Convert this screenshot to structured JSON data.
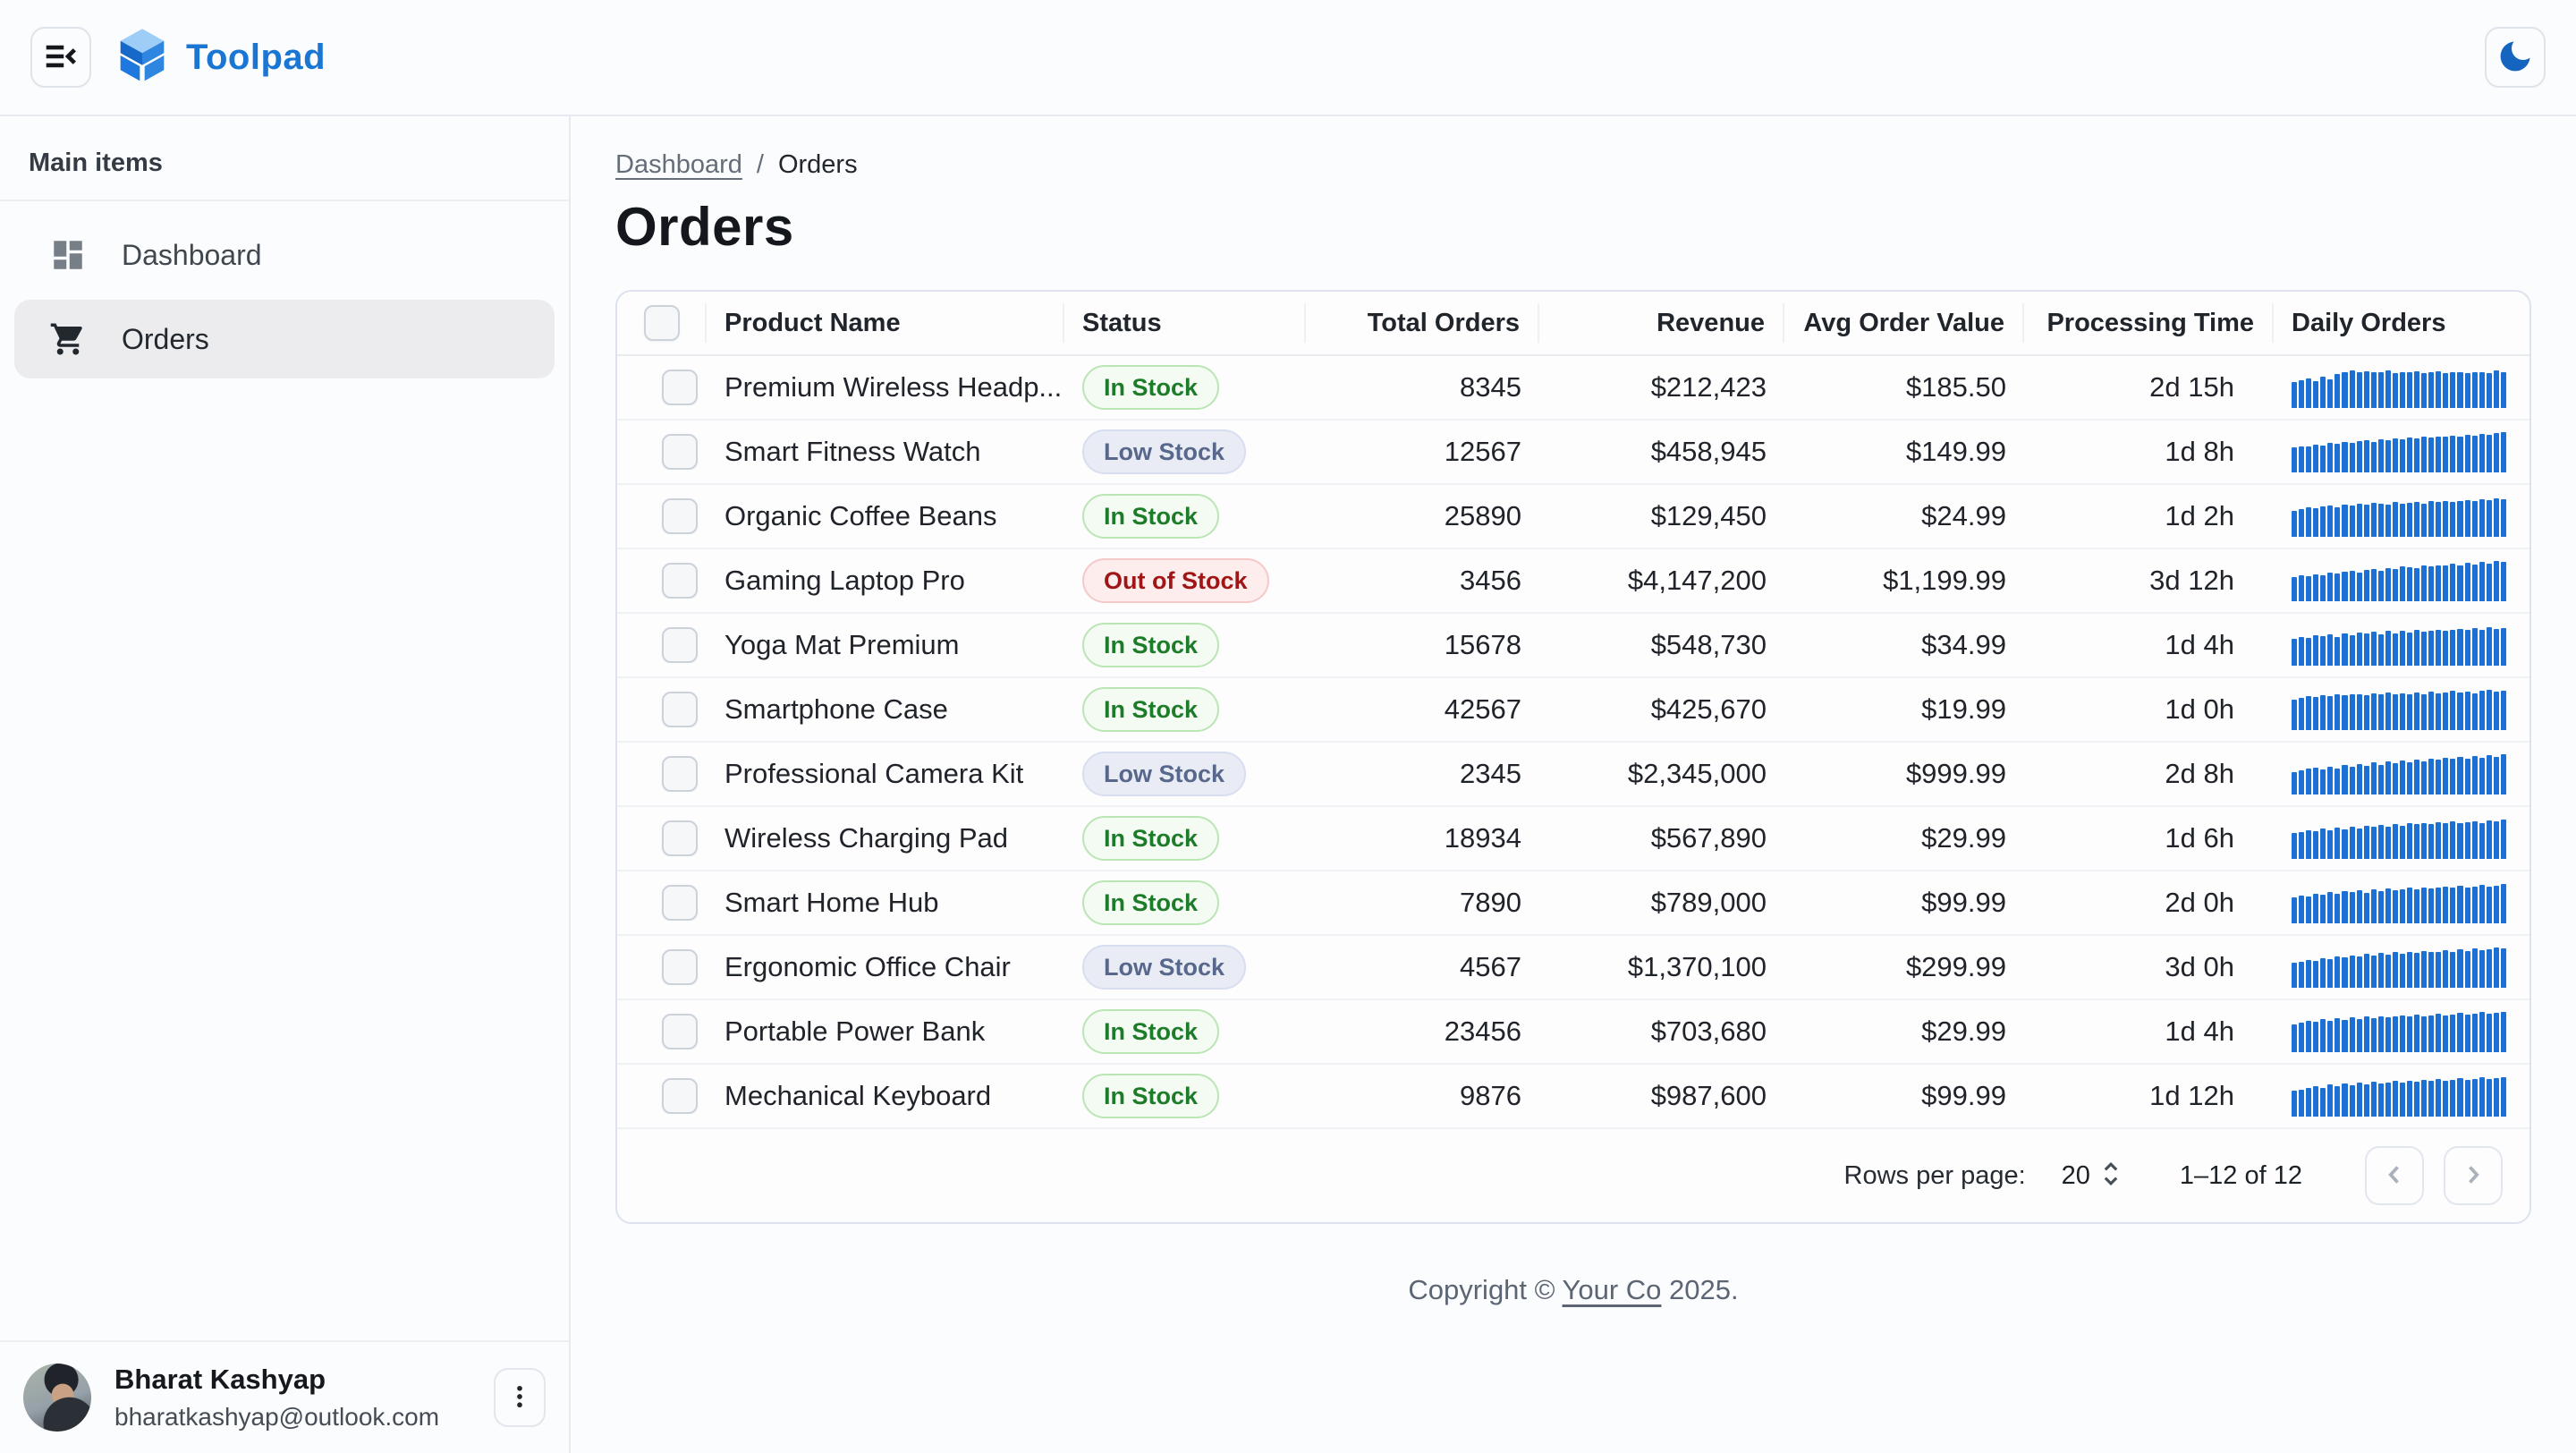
{
  "topbar": {
    "title": "Toolpad",
    "brand_color": "#1976d2"
  },
  "sidebar": {
    "section_label": "Main items",
    "items": [
      {
        "label": "Dashboard",
        "icon": "dashboard-icon",
        "selected": false
      },
      {
        "label": "Orders",
        "icon": "cart-icon",
        "selected": true
      }
    ],
    "user": {
      "name": "Bharat Kashyap",
      "email": "bharatkashyap@outlook.com"
    }
  },
  "breadcrumb": {
    "link": "Dashboard",
    "separator": "/",
    "current": "Orders"
  },
  "page": {
    "title": "Orders"
  },
  "table": {
    "columns": [
      {
        "label": "",
        "align": "left"
      },
      {
        "label": "Product Name",
        "align": "left"
      },
      {
        "label": "Status",
        "align": "left"
      },
      {
        "label": "Total Orders",
        "align": "right"
      },
      {
        "label": "Revenue",
        "align": "right"
      },
      {
        "label": "Avg Order Value",
        "align": "right"
      },
      {
        "label": "Processing Time",
        "align": "right"
      },
      {
        "label": "Daily Orders",
        "align": "left"
      }
    ],
    "status_colors": {
      "in-stock": {
        "text": "#1d7c2a",
        "bg": "#f3fbf2",
        "border": "#bce5b6"
      },
      "low-stock": {
        "text": "#57688c",
        "bg": "#e9ecf5",
        "border": "#d8def0"
      },
      "out-of-stock": {
        "text": "#a01616",
        "bg": "#fdeded",
        "border": "#f6c9c9"
      }
    },
    "sparkline_color": "#1c6fd3",
    "rows": [
      {
        "product": "Premium Wireless Headp...",
        "status": "In Stock",
        "variant": "in-stock",
        "total_orders": "8345",
        "revenue": "$212,423",
        "avg_order_value": "$185.50",
        "processing_time": "2d 15h",
        "daily": [
          62,
          68,
          72,
          66,
          76,
          70,
          82,
          88,
          92,
          86,
          90,
          88,
          86,
          92,
          84,
          88,
          86,
          90,
          85,
          88,
          90,
          84,
          86,
          88,
          85,
          88,
          86,
          84,
          92,
          88
        ]
      },
      {
        "product": "Smart Fitness Watch",
        "status": "Low Stock",
        "variant": "low-stock",
        "total_orders": "12567",
        "revenue": "$458,945",
        "avg_order_value": "$149.99",
        "processing_time": "1d 8h",
        "daily": [
          60,
          64,
          62,
          68,
          66,
          72,
          70,
          74,
          72,
          76,
          78,
          74,
          80,
          78,
          82,
          80,
          84,
          82,
          86,
          84,
          88,
          86,
          90,
          88,
          92,
          90,
          94,
          92,
          96,
          98
        ]
      },
      {
        "product": "Organic Coffee Beans",
        "status": "In Stock",
        "variant": "in-stock",
        "total_orders": "25890",
        "revenue": "$129,450",
        "avg_order_value": "$24.99",
        "processing_time": "1d 2h",
        "daily": [
          64,
          68,
          72,
          70,
          74,
          76,
          72,
          78,
          76,
          80,
          78,
          82,
          80,
          78,
          84,
          80,
          82,
          84,
          80,
          86,
          84,
          88,
          84,
          86,
          90,
          88,
          92,
          90,
          94,
          92
        ]
      },
      {
        "product": "Gaming Laptop Pro",
        "status": "Out of Stock",
        "variant": "out-of-stock",
        "total_orders": "3456",
        "revenue": "$4,147,200",
        "avg_order_value": "$1,199.99",
        "processing_time": "3d 12h",
        "daily": [
          58,
          62,
          60,
          66,
          64,
          70,
          68,
          72,
          74,
          70,
          76,
          78,
          74,
          80,
          78,
          84,
          82,
          80,
          86,
          84,
          88,
          86,
          92,
          88,
          94,
          90,
          96,
          92,
          98,
          96
        ]
      },
      {
        "product": "Yoga Mat Premium",
        "status": "In Stock",
        "variant": "in-stock",
        "total_orders": "15678",
        "revenue": "$548,730",
        "avg_order_value": "$34.99",
        "processing_time": "1d 4h",
        "daily": [
          66,
          70,
          68,
          74,
          72,
          76,
          70,
          78,
          74,
          80,
          78,
          82,
          76,
          84,
          78,
          84,
          80,
          86,
          82,
          84,
          88,
          84,
          86,
          90,
          86,
          92,
          88,
          94,
          90,
          92
        ]
      },
      {
        "product": "Smartphone Case",
        "status": "In Stock",
        "variant": "in-stock",
        "total_orders": "42567",
        "revenue": "$425,670",
        "avg_order_value": "$19.99",
        "processing_time": "1d 0h",
        "daily": [
          74,
          78,
          82,
          80,
          84,
          82,
          86,
          84,
          88,
          86,
          84,
          90,
          86,
          92,
          88,
          90,
          86,
          92,
          88,
          94,
          90,
          92,
          96,
          92,
          94,
          90,
          96,
          98,
          94,
          96
        ]
      },
      {
        "product": "Professional Camera Kit",
        "status": "Low Stock",
        "variant": "low-stock",
        "total_orders": "2345",
        "revenue": "$2,345,000",
        "avg_order_value": "$999.99",
        "processing_time": "2d 8h",
        "daily": [
          54,
          58,
          62,
          66,
          60,
          68,
          64,
          72,
          68,
          74,
          70,
          78,
          72,
          80,
          76,
          82,
          78,
          84,
          80,
          86,
          84,
          90,
          86,
          92,
          88,
          94,
          90,
          96,
          92,
          98
        ]
      },
      {
        "product": "Wireless Charging Pad",
        "status": "In Stock",
        "variant": "in-stock",
        "total_orders": "18934",
        "revenue": "$567,890",
        "avg_order_value": "$29.99",
        "processing_time": "1d 6h",
        "daily": [
          62,
          66,
          70,
          68,
          74,
          70,
          76,
          72,
          78,
          74,
          80,
          78,
          82,
          78,
          84,
          80,
          86,
          84,
          88,
          84,
          90,
          86,
          92,
          88,
          90,
          92,
          88,
          94,
          92,
          96
        ]
      },
      {
        "product": "Smart Home Hub",
        "status": "In Stock",
        "variant": "in-stock",
        "total_orders": "7890",
        "revenue": "$789,000",
        "avg_order_value": "$99.99",
        "processing_time": "2d 0h",
        "daily": [
          64,
          68,
          66,
          72,
          70,
          76,
          72,
          78,
          76,
          80,
          74,
          82,
          78,
          84,
          80,
          82,
          86,
          82,
          88,
          84,
          86,
          90,
          86,
          92,
          88,
          90,
          94,
          90,
          92,
          96
        ]
      },
      {
        "product": "Ergonomic Office Chair",
        "status": "Low Stock",
        "variant": "low-stock",
        "total_orders": "4567",
        "revenue": "$1,370,100",
        "avg_order_value": "$299.99",
        "processing_time": "3d 0h",
        "daily": [
          60,
          64,
          68,
          66,
          72,
          70,
          76,
          74,
          78,
          76,
          82,
          78,
          84,
          80,
          86,
          82,
          88,
          84,
          90,
          86,
          88,
          92,
          88,
          94,
          90,
          96,
          92,
          94,
          98,
          96
        ]
      },
      {
        "product": "Portable Power Bank",
        "status": "In Stock",
        "variant": "in-stock",
        "total_orders": "23456",
        "revenue": "$703,680",
        "avg_order_value": "$29.99",
        "processing_time": "1d 4h",
        "daily": [
          68,
          72,
          76,
          74,
          80,
          76,
          82,
          78,
          84,
          80,
          86,
          82,
          88,
          84,
          86,
          90,
          86,
          92,
          88,
          90,
          94,
          90,
          92,
          96,
          92,
          94,
          98,
          94,
          96,
          98
        ]
      },
      {
        "product": "Mechanical Keyboard",
        "status": "In Stock",
        "variant": "in-stock",
        "total_orders": "9876",
        "revenue": "$987,600",
        "avg_order_value": "$99.99",
        "processing_time": "1d 12h",
        "daily": [
          62,
          66,
          70,
          74,
          70,
          78,
          74,
          80,
          76,
          82,
          78,
          84,
          80,
          82,
          86,
          82,
          88,
          84,
          90,
          86,
          92,
          88,
          90,
          94,
          90,
          92,
          96,
          92,
          94,
          96
        ]
      }
    ],
    "pagination": {
      "rows_per_page_label": "Rows per page:",
      "rows_per_page_value": "20",
      "range_label": "1–12 of 12"
    }
  },
  "footer": {
    "prefix": "Copyright © ",
    "link": "Your Co",
    "suffix": " 2025."
  }
}
